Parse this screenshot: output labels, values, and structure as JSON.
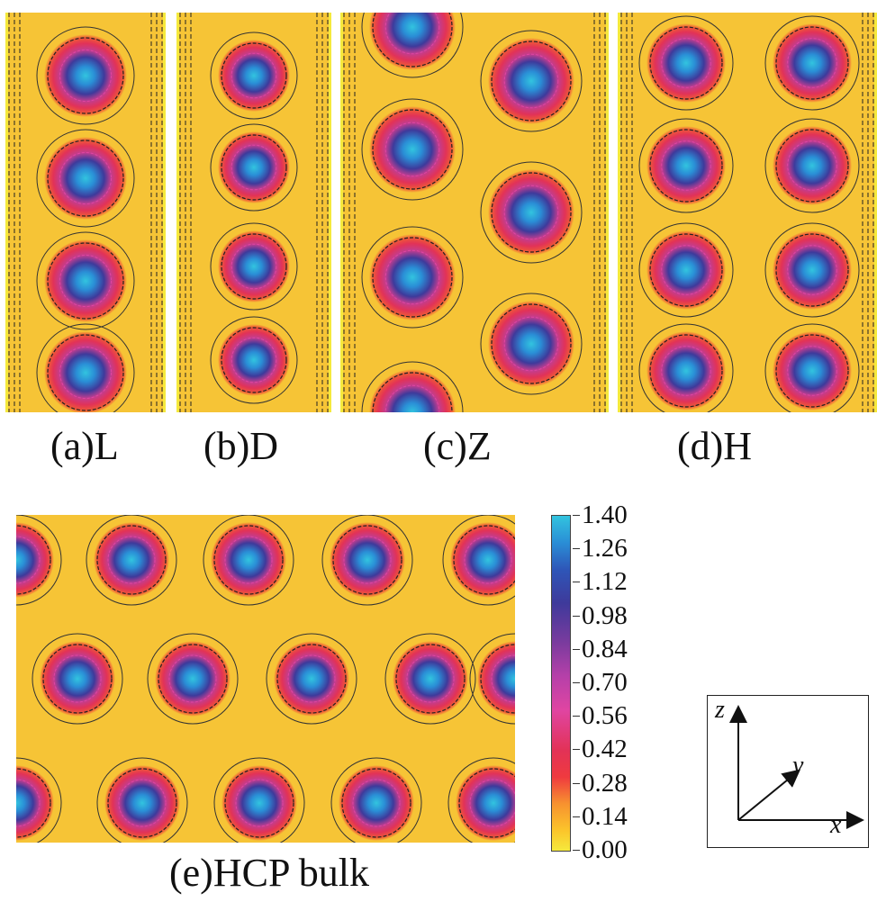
{
  "captions": {
    "a": "(a)L",
    "b": "(b)D",
    "c": "(c)Z",
    "d": "(d)H",
    "e": "(e)HCP bulk"
  },
  "colorbar": {
    "ticks": [
      "1.40",
      "1.26",
      "1.12",
      "0.98",
      "0.84",
      "0.70",
      "0.56",
      "0.42",
      "0.28",
      "0.14",
      "0.00"
    ],
    "min": 0.0,
    "max": 1.4,
    "colors": {
      "low": "#f5e93c",
      "background": "#f6c436",
      "mid": "#e23257",
      "high_mid": "#3e3a9b",
      "high": "#32c4df"
    }
  },
  "axes": {
    "x": "x",
    "y": "y",
    "z": "z"
  }
}
